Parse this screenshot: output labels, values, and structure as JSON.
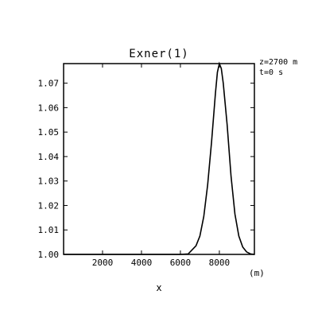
{
  "chart_data": {
    "type": "line",
    "title": "Exner(1)",
    "xlabel": "x",
    "xunit": "(m)",
    "ylabel": "",
    "annotations": [
      "z=2700 m",
      "t=0  s"
    ],
    "xlim": [
      0,
      9800
    ],
    "ylim": [
      1.0,
      1.078
    ],
    "xticks": [
      2000,
      4000,
      6000,
      8000
    ],
    "xtick_labels": [
      "2000",
      "4000",
      "6000",
      "8000"
    ],
    "yticks": [
      1.0,
      1.01,
      1.02,
      1.03,
      1.04,
      1.05,
      1.06,
      1.07
    ],
    "ytick_labels": [
      "1.00",
      "1.01",
      "1.02",
      "1.03",
      "1.04",
      "1.05",
      "1.06",
      "1.07"
    ],
    "grid": false,
    "series": [
      {
        "x": [
          0,
          1000,
          2000,
          3000,
          4000,
          5000,
          6000,
          6400,
          6800,
          7000,
          7200,
          7400,
          7600,
          7800,
          7900,
          8000,
          8100,
          8200,
          8400,
          8600,
          8800,
          9000,
          9200,
          9400,
          9600,
          9800
        ],
        "y": [
          1.0,
          1.0,
          1.0,
          1.0,
          1.0,
          1.0,
          1.0,
          1.0002,
          1.0035,
          1.0075,
          1.0155,
          1.0285,
          1.046,
          1.066,
          1.0745,
          1.078,
          1.076,
          1.07,
          1.053,
          1.032,
          1.0165,
          1.0075,
          1.003,
          1.001,
          1.0002,
          1.0
        ]
      }
    ]
  }
}
